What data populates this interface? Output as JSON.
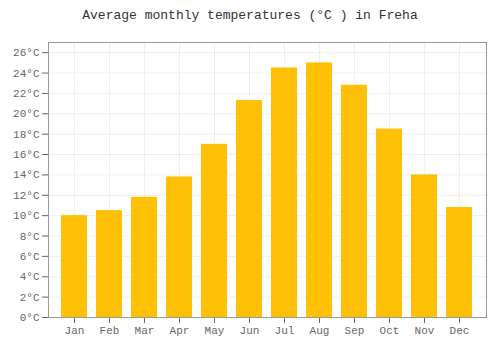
{
  "chart_data": {
    "type": "bar",
    "title": "Average monthly temperatures (°C ) in Freha",
    "categories": [
      "Jan",
      "Feb",
      "Mar",
      "Apr",
      "May",
      "Jun",
      "Jul",
      "Aug",
      "Sep",
      "Oct",
      "Nov",
      "Dec"
    ],
    "values": [
      10.0,
      10.5,
      11.8,
      13.8,
      17.0,
      21.3,
      24.5,
      25.0,
      22.8,
      18.5,
      14.0,
      10.8
    ],
    "color": "#FFC107",
    "ylim": [
      0,
      27
    ],
    "yticks": [
      {
        "value": 0,
        "label": "0°C"
      },
      {
        "value": 2,
        "label": "2°C"
      },
      {
        "value": 4,
        "label": "4°C"
      },
      {
        "value": 6,
        "label": "6°C"
      },
      {
        "value": 8,
        "label": "8°C"
      },
      {
        "value": 10,
        "label": "10°C"
      },
      {
        "value": 12,
        "label": "12°C"
      },
      {
        "value": 14,
        "label": "14°C"
      },
      {
        "value": 16,
        "label": "16°C"
      },
      {
        "value": 18,
        "label": "18°C"
      },
      {
        "value": 20,
        "label": "20°C"
      },
      {
        "value": 22,
        "label": "22°C"
      },
      {
        "value": 24,
        "label": "24°C"
      },
      {
        "value": 26,
        "label": "26°C"
      }
    ],
    "grid": true
  }
}
